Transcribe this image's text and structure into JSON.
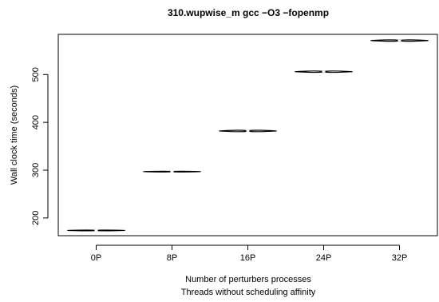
{
  "chart_data": {
    "type": "violin",
    "title": "310.wupwise_m gcc −O3 −fopenmp",
    "xlabel": "Number of perturbers processes",
    "xlabel2": "Threads without scheduling affinity",
    "ylabel": "Wall clock time (seconds)",
    "categories": [
      "0P",
      "8P",
      "16P",
      "24P",
      "32P"
    ],
    "medians": [
      174,
      297,
      382,
      506,
      571
    ],
    "spread": [
      1,
      1,
      2.5,
      2.5,
      2.5
    ],
    "yticks": [
      200,
      300,
      400,
      500
    ],
    "ylim": [
      163,
      584
    ],
    "grid": false,
    "legend": "none"
  }
}
